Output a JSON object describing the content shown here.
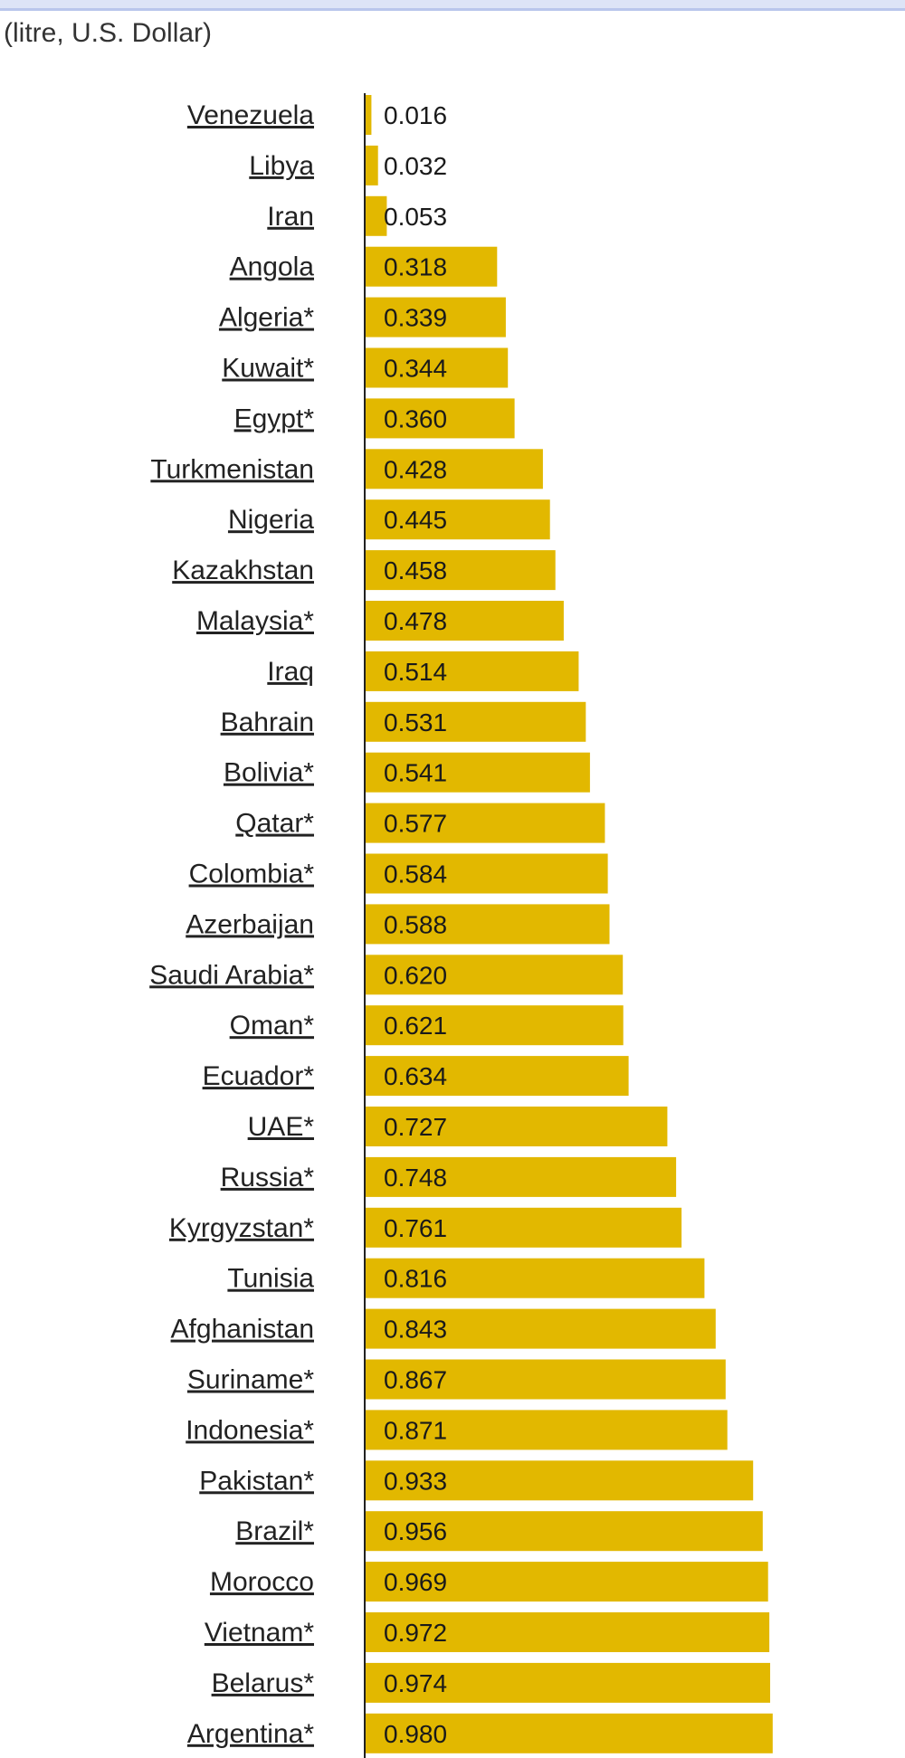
{
  "header": {
    "unit_label": "(litre, U.S. Dollar)"
  },
  "colors": {
    "bar": "#e2b800",
    "axis": "#222222",
    "top_bar": "#dde4f7"
  },
  "chart_data": {
    "type": "bar",
    "orientation": "horizontal",
    "title": "",
    "xlabel": "",
    "ylabel": "",
    "xlim": [
      0,
      1
    ],
    "grid": false,
    "categories": [
      "Venezuela ",
      "Libya ",
      "Iran ",
      "Angola ",
      "Algeria*",
      "Kuwait*",
      "Egypt*",
      "Turkmenistan ",
      "Nigeria ",
      "Kazakhstan ",
      "Malaysia*",
      "Iraq ",
      "Bahrain ",
      "Bolivia*",
      "Qatar*",
      "Colombia*",
      "Azerbaijan ",
      "Saudi Arabia*",
      "Oman*",
      "Ecuador*",
      "UAE*",
      "Russia*",
      "Kyrgyzstan*",
      "Tunisia ",
      "Afghanistan ",
      "Suriname*",
      "Indonesia*",
      "Pakistan*",
      "Brazil*",
      "Morocco ",
      "Vietnam*",
      "Belarus*",
      "Argentina*"
    ],
    "values": [
      0.016,
      0.032,
      0.053,
      0.318,
      0.339,
      0.344,
      0.36,
      0.428,
      0.445,
      0.458,
      0.478,
      0.514,
      0.531,
      0.541,
      0.577,
      0.584,
      0.588,
      0.62,
      0.621,
      0.634,
      0.727,
      0.748,
      0.761,
      0.816,
      0.843,
      0.867,
      0.871,
      0.933,
      0.956,
      0.969,
      0.972,
      0.974,
      0.98
    ],
    "value_labels": [
      "0.016",
      "0.032",
      "0.053",
      "0.318",
      "0.339",
      "0.344",
      "0.360",
      "0.428",
      "0.445",
      "0.458",
      "0.478",
      "0.514",
      "0.531",
      "0.541",
      "0.577",
      "0.584",
      "0.588",
      "0.620",
      "0.621",
      "0.634",
      "0.727",
      "0.748",
      "0.761",
      "0.816",
      "0.843",
      "0.867",
      "0.871",
      "0.933",
      "0.956",
      "0.969",
      "0.972",
      "0.974",
      "0.980"
    ]
  }
}
